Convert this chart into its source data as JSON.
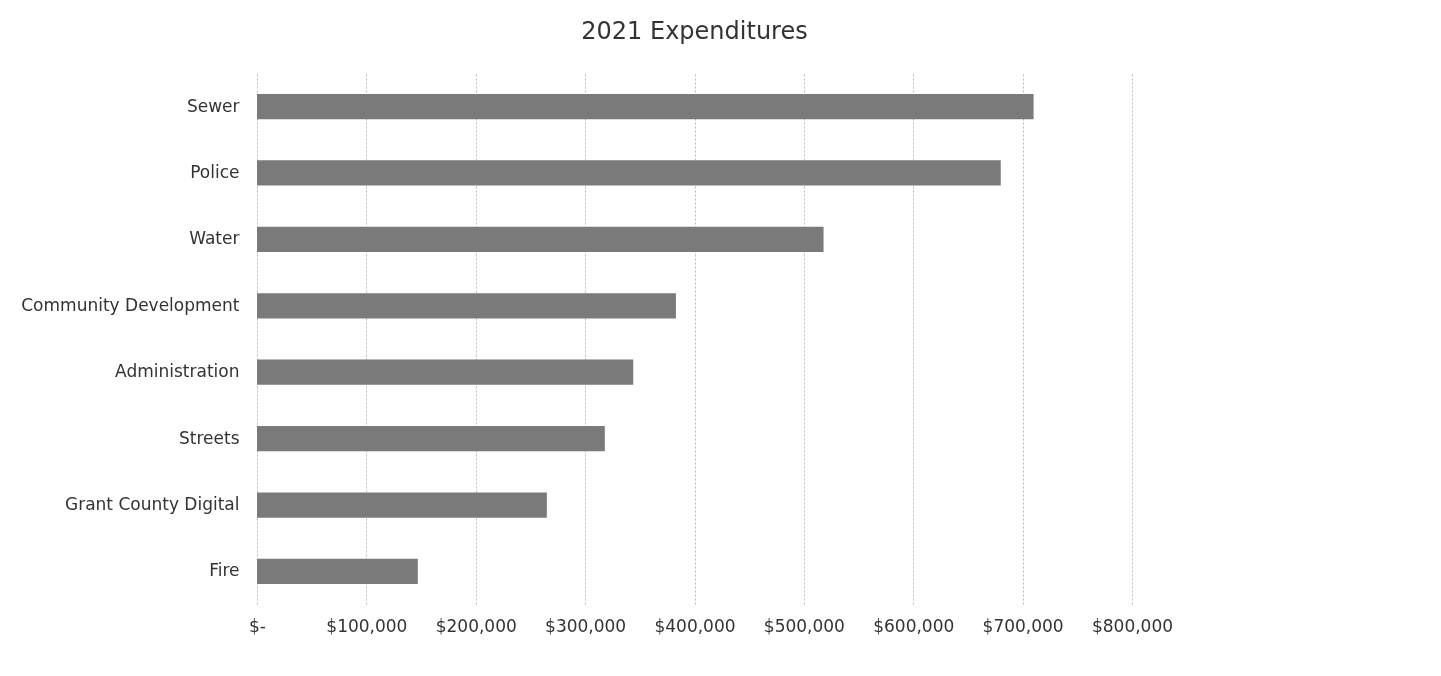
{
  "chart_data": {
    "type": "bar",
    "orientation": "horizontal",
    "title": "2021 Expenditures",
    "categories": [
      "Sewer",
      "Police",
      "Water",
      "Community Development",
      "Administration",
      "Streets",
      "Grant County Digital",
      "Fire"
    ],
    "values": [
      710000,
      680000,
      518000,
      383000,
      344000,
      318000,
      265000,
      147000
    ],
    "color": "#7a7a7a",
    "xlim": [
      0,
      800000
    ],
    "xticks": [
      {
        "value": 0,
        "label": "$-"
      },
      {
        "value": 100000,
        "label": "$100,000"
      },
      {
        "value": 200000,
        "label": "$200,000"
      },
      {
        "value": 300000,
        "label": "$300,000"
      },
      {
        "value": 400000,
        "label": "$400,000"
      },
      {
        "value": 500000,
        "label": "$500,000"
      },
      {
        "value": 600000,
        "label": "$600,000"
      },
      {
        "value": 700000,
        "label": "$700,000"
      },
      {
        "value": 800000,
        "label": "$800,000"
      }
    ],
    "grid": "x"
  }
}
